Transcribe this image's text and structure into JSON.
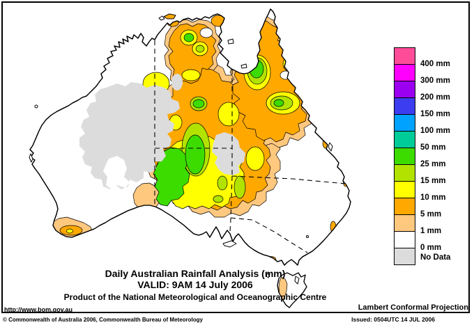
{
  "map": {
    "title_line1": "Daily Australian Rainfall Analysis (mm)",
    "title_line2": "VALID: 9AM 14 July 2006",
    "title_line3": "Product of the National Meteorological and Oceanographic Centre",
    "url_label": "http://www.bom.gov.au",
    "projection_label": "Lambert Conformal Projection"
  },
  "footer": {
    "copyright": "© Commonwealth of Australia 2006, Commonwealth Bureau of Meteorology",
    "issued": "Issued: 0504UTC 14 JUL 2006"
  },
  "legend": {
    "items": [
      {
        "label": "400 mm",
        "color": "#FF4C99"
      },
      {
        "label": "300 mm",
        "color": "#FF00FF"
      },
      {
        "label": "200 mm",
        "color": "#9C00F0"
      },
      {
        "label": "150 mm",
        "color": "#3C3CF0"
      },
      {
        "label": "100 mm",
        "color": "#00A2FF"
      },
      {
        "label": "50 mm",
        "color": "#00CC99"
      },
      {
        "label": "25 mm",
        "color": "#3CDC00"
      },
      {
        "label": "15 mm",
        "color": "#B2E300"
      },
      {
        "label": "10 mm",
        "color": "#FFFF00"
      },
      {
        "label": "5 mm",
        "color": "#FFA800"
      },
      {
        "label": "1 mm",
        "color": "#FFC87F"
      },
      {
        "label": "0 mm",
        "color": "#FFFFFF"
      },
      {
        "label": "No Data",
        "color": "#DCDCDC"
      }
    ]
  }
}
